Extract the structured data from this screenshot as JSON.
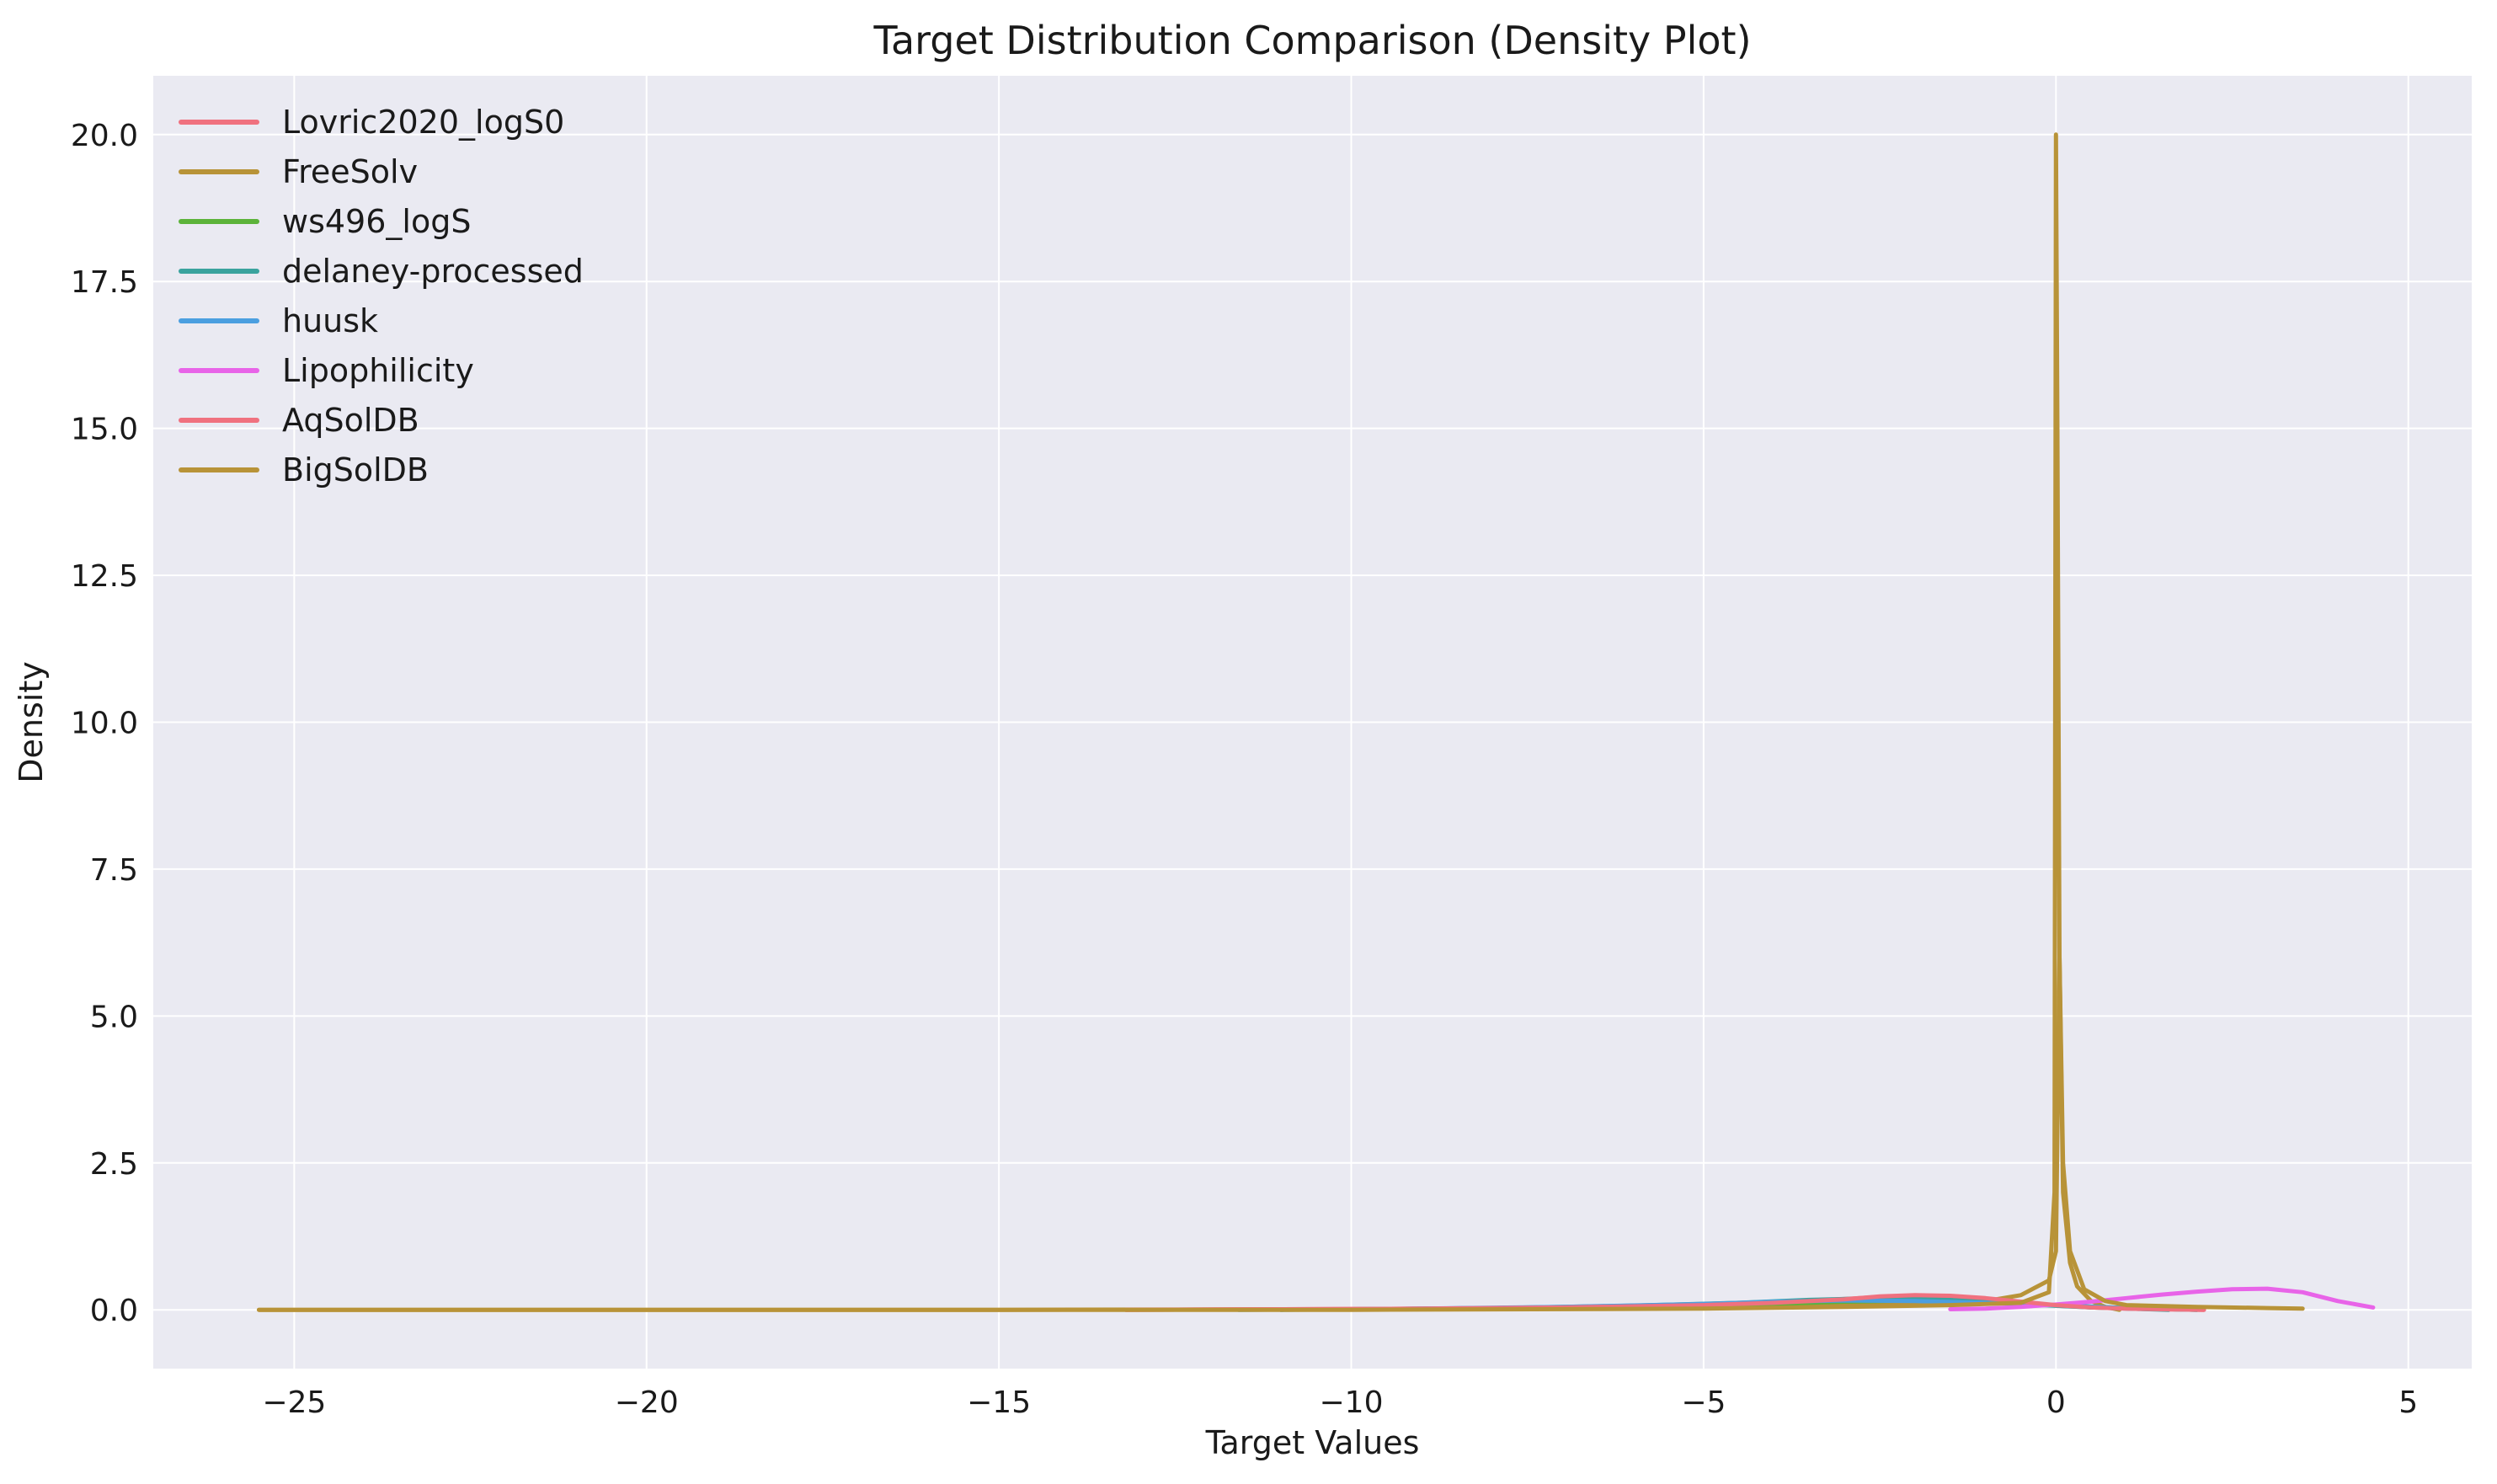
{
  "chart_data": {
    "type": "line",
    "title": "Target Distribution Comparison (Density Plot)",
    "xlabel": "Target Values",
    "ylabel": "Density",
    "xlim": [
      -27,
      5.9
    ],
    "ylim": [
      -1.0,
      21.0
    ],
    "xticks": [
      -25,
      -20,
      -15,
      -10,
      -5,
      0,
      5
    ],
    "xtick_labels": [
      "−25",
      "−20",
      "−15",
      "−10",
      "−5",
      "0",
      "5"
    ],
    "yticks": [
      0.0,
      2.5,
      5.0,
      7.5,
      10.0,
      12.5,
      15.0,
      17.5,
      20.0
    ],
    "ytick_labels": [
      "0.0",
      "2.5",
      "5.0",
      "7.5",
      "10.0",
      "12.5",
      "15.0",
      "17.5",
      "20.0"
    ],
    "grid": true,
    "legend_position": "top-left",
    "background_color": "#eaeaf2",
    "grid_color": "#ffffff",
    "series": [
      {
        "name": "Lovric2020_logS0",
        "color": "#f0717f",
        "x": [
          -13.2,
          -11,
          -9,
          -7,
          -5,
          -3.5,
          -2.5,
          -2.0,
          -1.5,
          -1.0,
          -0.5,
          0.0,
          0.5,
          1.0,
          1.5,
          2.1
        ],
        "y": [
          0.0,
          0.01,
          0.02,
          0.04,
          0.08,
          0.15,
          0.22,
          0.24,
          0.22,
          0.18,
          0.12,
          0.07,
          0.04,
          0.02,
          0.01,
          0.0
        ]
      },
      {
        "name": "FreeSolv",
        "color": "#b89338",
        "x": [
          -25.5,
          -20,
          -15,
          -10,
          -5,
          -3,
          -2,
          -1,
          -0.5,
          -0.1,
          0.0,
          0.05,
          0.1,
          0.2,
          0.3,
          0.5,
          0.7,
          0.9
        ],
        "y": [
          0.0,
          0.0,
          0.0,
          0.01,
          0.05,
          0.08,
          0.1,
          0.15,
          0.25,
          0.5,
          1.0,
          6.0,
          2.0,
          0.8,
          0.4,
          0.15,
          0.05,
          0.0
        ]
      },
      {
        "name": "ws496_logS",
        "color": "#5cb33a",
        "x": [
          -11,
          -9,
          -7,
          -5,
          -4,
          -3,
          -2,
          -1,
          0,
          1,
          2
        ],
        "y": [
          0.0,
          0.01,
          0.03,
          0.07,
          0.1,
          0.14,
          0.16,
          0.13,
          0.08,
          0.03,
          0.0
        ]
      },
      {
        "name": "delaney-processed",
        "color": "#3aa39e",
        "x": [
          -11.6,
          -10,
          -8,
          -6,
          -4.5,
          -3.5,
          -2.5,
          -1.5,
          -0.5,
          0.5,
          1.6
        ],
        "y": [
          0.0,
          0.01,
          0.03,
          0.07,
          0.12,
          0.17,
          0.2,
          0.17,
          0.1,
          0.04,
          0.0
        ]
      },
      {
        "name": "huusk",
        "color": "#4b9fe0",
        "x": [
          -11,
          -9,
          -7,
          -5,
          -4,
          -3,
          -2,
          -1,
          0,
          1,
          2
        ],
        "y": [
          0.0,
          0.02,
          0.05,
          0.1,
          0.14,
          0.16,
          0.15,
          0.12,
          0.08,
          0.03,
          0.0
        ]
      },
      {
        "name": "Lipophilicity",
        "color": "#e864e8",
        "x": [
          -1.5,
          -1.0,
          -0.5,
          0.0,
          0.5,
          1.0,
          1.5,
          2.0,
          2.5,
          3.0,
          3.5,
          4.0,
          4.5
        ],
        "y": [
          0.01,
          0.02,
          0.05,
          0.09,
          0.14,
          0.2,
          0.26,
          0.31,
          0.35,
          0.36,
          0.3,
          0.15,
          0.04
        ]
      },
      {
        "name": "AqSolDB",
        "color": "#f0717f",
        "x": [
          -13.2,
          -11,
          -9,
          -7,
          -5,
          -4,
          -3,
          -2.5,
          -2.0,
          -1.5,
          -1.0,
          -0.5,
          0.0,
          0.5,
          1.0,
          1.5,
          2.1
        ],
        "y": [
          0.0,
          0.01,
          0.02,
          0.04,
          0.08,
          0.12,
          0.18,
          0.23,
          0.25,
          0.24,
          0.2,
          0.14,
          0.08,
          0.04,
          0.02,
          0.01,
          0.0
        ]
      },
      {
        "name": "BigSolDB",
        "color": "#b89338",
        "x": [
          -25.5,
          -20,
          -15,
          -10,
          -5,
          -3,
          -1.5,
          -0.5,
          -0.1,
          -0.02,
          0.0,
          0.02,
          0.05,
          0.1,
          0.2,
          0.4,
          0.7,
          1.0,
          2.0,
          3.0,
          3.5
        ],
        "y": [
          0.0,
          0.0,
          0.0,
          0.0,
          0.02,
          0.05,
          0.08,
          0.12,
          0.3,
          2.0,
          20.0,
          15.0,
          6.0,
          2.5,
          1.0,
          0.35,
          0.15,
          0.08,
          0.05,
          0.03,
          0.02
        ]
      }
    ]
  }
}
